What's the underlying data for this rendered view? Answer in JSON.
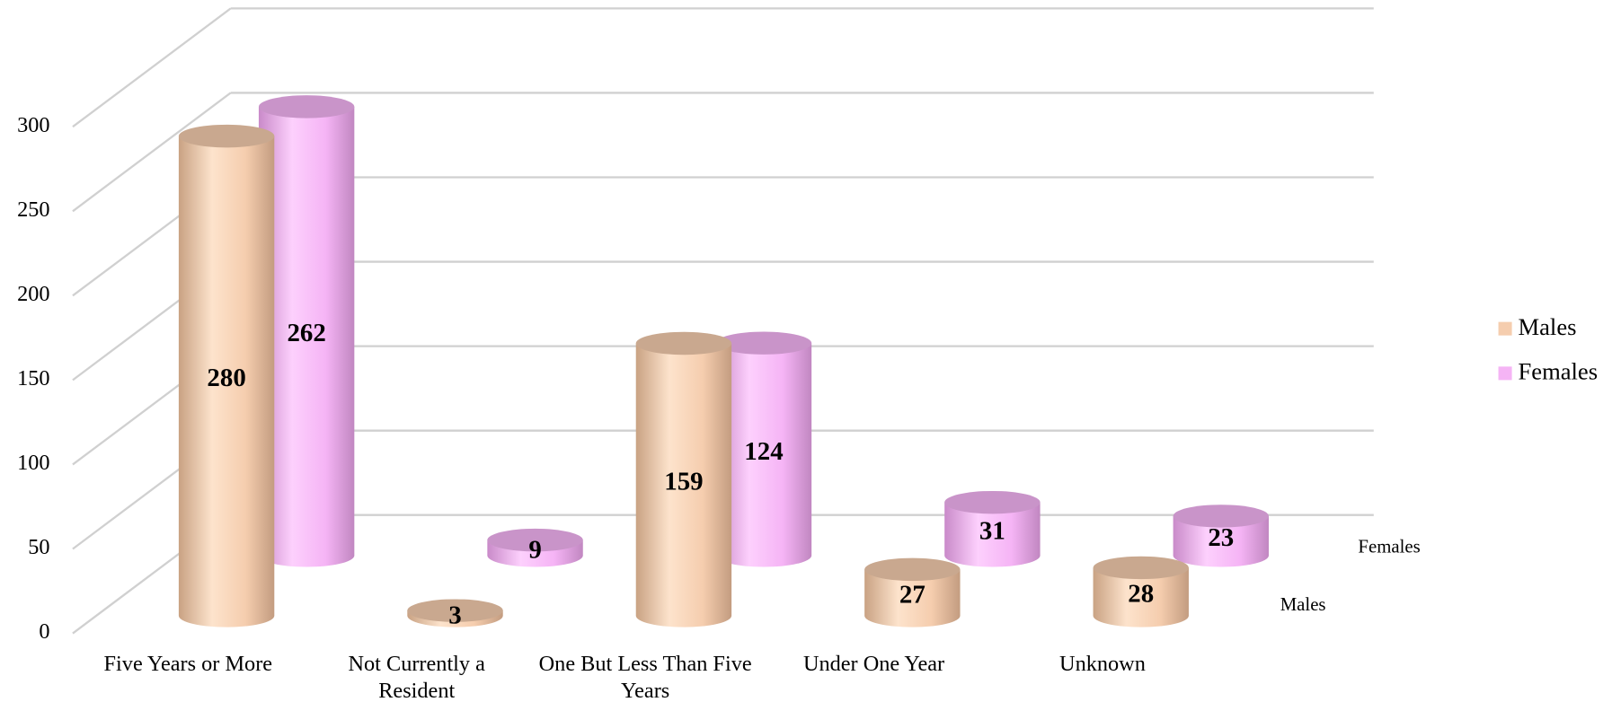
{
  "chart_data": {
    "type": "cylinder3d",
    "categories": [
      "Five Years or More",
      "Not Currently a Resident",
      "One But Less Than Five Years",
      "Under One Year",
      "Unknown"
    ],
    "series": [
      {
        "name": "Males",
        "color": "#f5cdae",
        "values": [
          280,
          3,
          159,
          27,
          28
        ]
      },
      {
        "name": "Females",
        "color": "#f5b4f5",
        "values": [
          262,
          9,
          124,
          31,
          23
        ]
      }
    ],
    "ylim": [
      0,
      300
    ],
    "yticks": [
      0,
      50,
      100,
      150,
      200,
      250,
      300
    ],
    "grid": true,
    "legend": "right"
  }
}
